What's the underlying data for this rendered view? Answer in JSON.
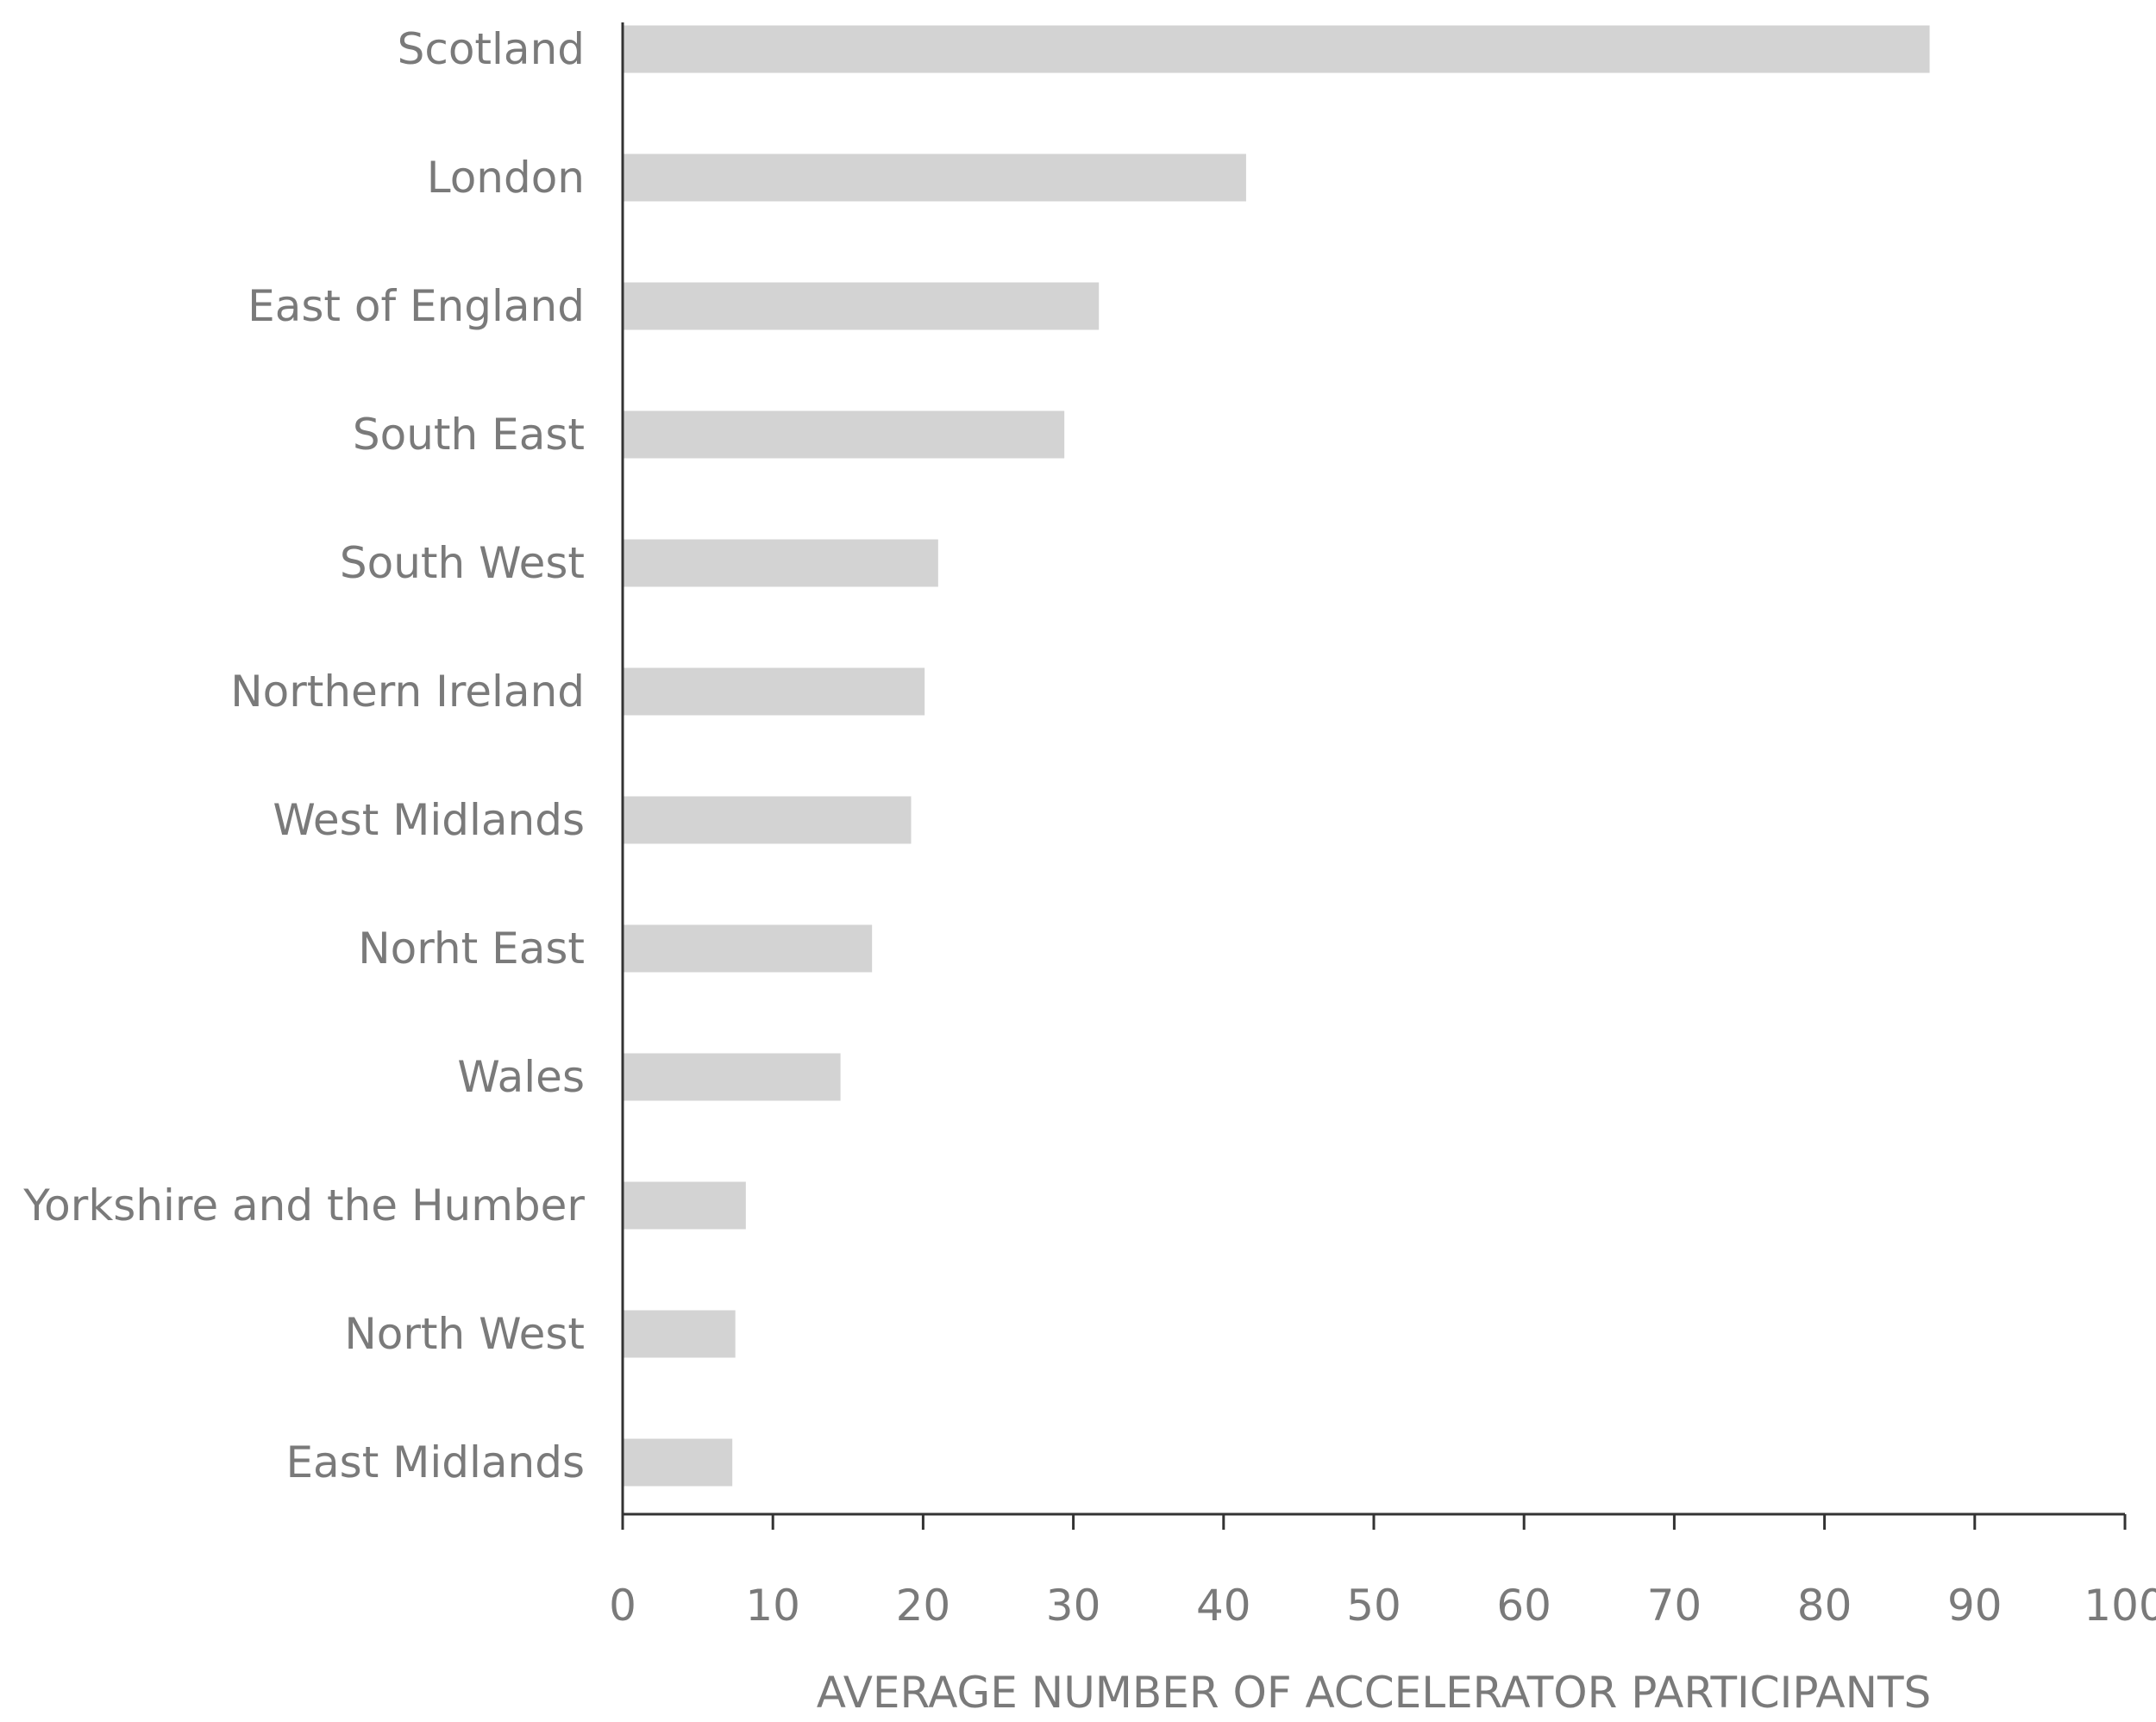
{
  "chart_data": {
    "type": "bar",
    "orientation": "horizontal",
    "categories": [
      "Scotland",
      "London",
      "East of England",
      "South East",
      "South West",
      "Northern Ireland",
      "West Midlands",
      "Norht East",
      "Wales",
      "Yorkshire and the Humber",
      "North West",
      "East Midlands"
    ],
    "values": [
      87,
      41.5,
      31.7,
      29.4,
      21,
      20.1,
      19.2,
      16.6,
      14.5,
      8.2,
      7.5,
      7.3
    ],
    "title": "",
    "xlabel": "AVERAGE NUMBER OF ACCELERATOR PARTICIPANTS",
    "ylabel": "",
    "xlim": [
      0,
      100
    ],
    "xticks": [
      "0",
      "10",
      "20",
      "30",
      "40",
      "50",
      "60",
      "70",
      "80",
      "90",
      "100"
    ],
    "grid": false,
    "legend": "none",
    "colors": {
      "bar": "#d3d3d3",
      "axis": "#333333",
      "text": "#7a7a7a"
    }
  }
}
